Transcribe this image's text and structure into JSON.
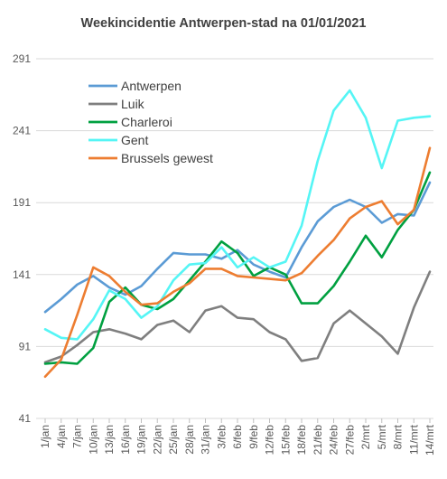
{
  "chart_data": {
    "type": "line",
    "title": "Weekincidentie  Antwerpen-stad na 01/01/2021",
    "xlabel": "",
    "ylabel": "",
    "ylim": [
      41,
      291
    ],
    "yticks": [
      "41",
      "91",
      "141",
      "191",
      "241",
      "291"
    ],
    "grid": "horizontal",
    "legend": "top-left",
    "categories": [
      "1/jan",
      "4/jan",
      "7/jan",
      "10/jan",
      "13/jan",
      "16/jan",
      "19/jan",
      "22/jan",
      "25/jan",
      "28/jan",
      "31/jan",
      "3/feb",
      "6/feb",
      "9/feb",
      "12/feb",
      "15/feb",
      "18/feb",
      "21/feb",
      "24/feb",
      "27/feb",
      "2/mrt",
      "5/mrt",
      "8/mrt",
      "11/mrt",
      "14/mrt"
    ],
    "series": [
      {
        "name": "Antwerpen",
        "color": "#5b9bd5",
        "values": [
          115,
          124,
          134,
          140,
          132,
          127,
          133,
          145,
          156,
          155,
          155,
          152,
          158,
          148,
          143,
          139,
          160,
          178,
          188,
          193,
          188,
          177,
          183,
          182,
          205
        ]
      },
      {
        "name": "Luik",
        "color": "#7f7f7f",
        "values": [
          80,
          84,
          92,
          101,
          103,
          100,
          96,
          106,
          109,
          101,
          116,
          119,
          111,
          110,
          101,
          96,
          81,
          83,
          107,
          116,
          107,
          98,
          86,
          118,
          143
        ]
      },
      {
        "name": "Charleroi",
        "color": "#00a040",
        "values": [
          79,
          80,
          79,
          90,
          122,
          132,
          120,
          117,
          124,
          137,
          150,
          164,
          156,
          140,
          146,
          141,
          121,
          121,
          133,
          150,
          168,
          153,
          172,
          186,
          212
        ]
      },
      {
        "name": "Gent",
        "color": "#55f5f5",
        "values": [
          103,
          97,
          96,
          110,
          130,
          124,
          111,
          119,
          137,
          148,
          149,
          160,
          146,
          153,
          146,
          150,
          175,
          220,
          255,
          269,
          250,
          215,
          248,
          250,
          251
        ]
      },
      {
        "name": "Brussels gewest",
        "color": "#ed7d31",
        "values": [
          70,
          82,
          113,
          146,
          140,
          129,
          120,
          121,
          129,
          135,
          145,
          145,
          140,
          139,
          138,
          137,
          142,
          154,
          165,
          180,
          188,
          192,
          176,
          186,
          229
        ]
      }
    ]
  }
}
